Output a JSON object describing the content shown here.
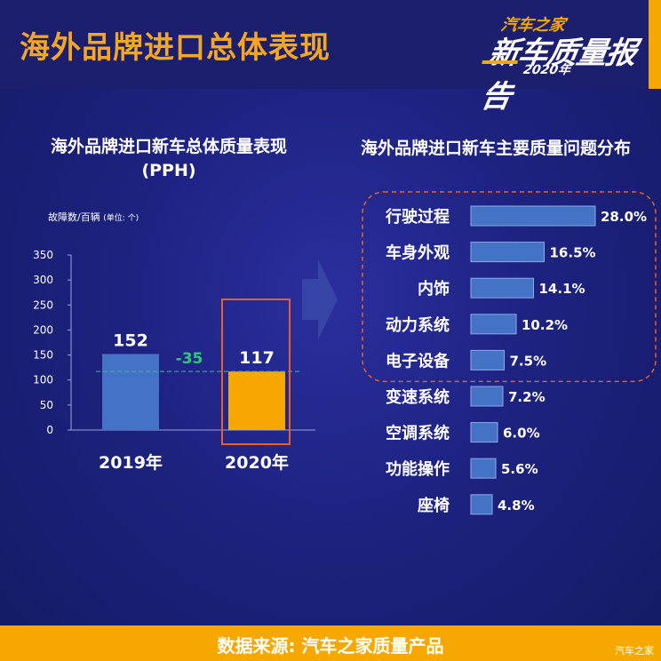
{
  "header": {
    "title": "海外品牌进口总体表现",
    "logo_line1": "汽车之家",
    "logo_line2": "新车质量报告",
    "logo_line3": "2020年"
  },
  "left_chart_title_line1": "海外品牌进口新车总体质量表现",
  "left_chart_title_line2": "(PPH)",
  "unit_label_main": "故障数/百辆",
  "unit_label_unit": "(单位: 个)",
  "right_chart_title": "海外品牌进口新车主要质量问题分布",
  "footer": {
    "source": "数据来源:  汽车之家质量产品",
    "watermark": "汽车之家"
  },
  "chart_data": [
    {
      "type": "bar",
      "categories": [
        "2019年",
        "2020年"
      ],
      "values": [
        152,
        117
      ],
      "data_labels": [
        "152",
        "117"
      ],
      "ylim": [
        0,
        350
      ],
      "yticks": [
        0,
        50,
        100,
        150,
        200,
        250,
        300,
        350
      ],
      "annotation": "-35",
      "colors": [
        "#4472c4",
        "#f7a800"
      ],
      "highlight_color": "#e8602a",
      "grid": false
    },
    {
      "type": "bar",
      "orientation": "horizontal",
      "categories": [
        "行驶过程",
        "车身外观",
        "内饰",
        "动力系统",
        "电子设备",
        "变速系统",
        "空调系统",
        "功能操作",
        "座椅"
      ],
      "values": [
        28.0,
        16.5,
        14.1,
        10.2,
        7.5,
        7.2,
        6.0,
        5.6,
        4.8
      ],
      "data_labels": [
        "28.0%",
        "16.5%",
        "14.1%",
        "10.2%",
        "7.5%",
        "7.2%",
        "6.0%",
        "5.6%",
        "4.8%"
      ],
      "highlighted_top": 5,
      "bar_color": "#4472c4",
      "highlight_color": "#e8602a"
    }
  ]
}
